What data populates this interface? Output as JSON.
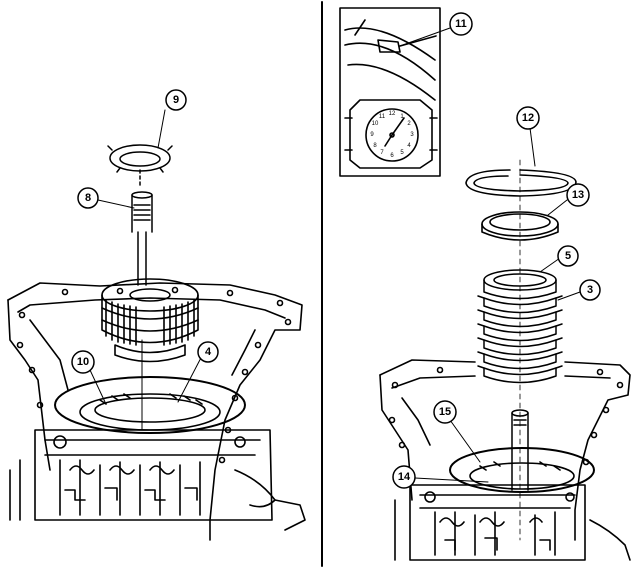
{
  "diagram": {
    "left_panel": {
      "callouts": [
        {
          "id": "c9",
          "label": "9"
        },
        {
          "id": "c8",
          "label": "8"
        },
        {
          "id": "c10",
          "label": "10"
        },
        {
          "id": "c4",
          "label": "4"
        }
      ]
    },
    "right_panel": {
      "callouts": [
        {
          "id": "c11",
          "label": "11"
        },
        {
          "id": "c12",
          "label": "12"
        },
        {
          "id": "c13",
          "label": "13"
        },
        {
          "id": "c5",
          "label": "5"
        },
        {
          "id": "c3",
          "label": "3"
        },
        {
          "id": "c15",
          "label": "15"
        },
        {
          "id": "c14",
          "label": "14"
        }
      ],
      "clock_face": {
        "numbers": [
          "12",
          "1",
          "2",
          "3",
          "4",
          "5",
          "6",
          "7",
          "8",
          "9",
          "10",
          "11"
        ]
      }
    }
  },
  "colors": {
    "ink": "#000000",
    "paper": "#ffffff"
  }
}
